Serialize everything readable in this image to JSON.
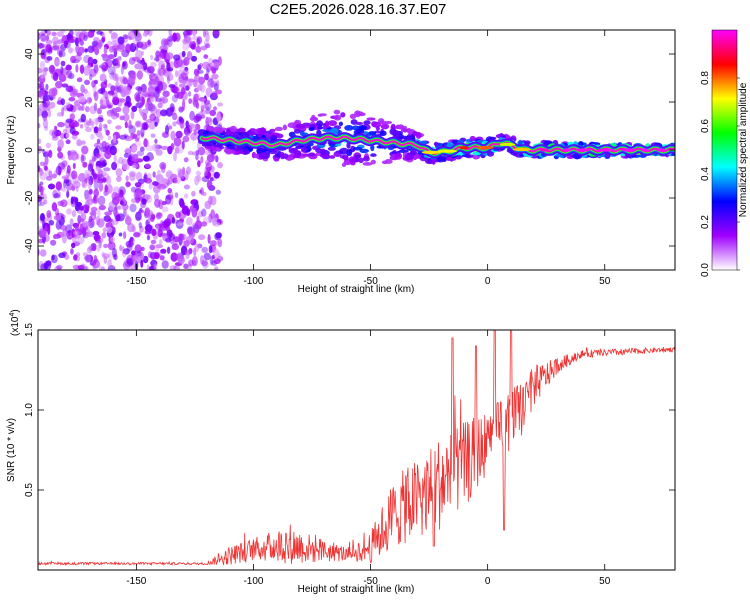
{
  "title": "C2E5.2026.028.16.37.E07",
  "chart_data": [
    {
      "type": "heatmap",
      "xlabel": "Height of straight line (km)",
      "ylabel": "Frequency (Hz)",
      "xlim": [
        -192,
        80
      ],
      "ylim": [
        -50,
        50
      ],
      "xticks": [
        -150,
        -100,
        -50,
        0,
        50
      ],
      "yticks": [
        -40,
        -20,
        0,
        20,
        40
      ],
      "colorbar": {
        "label": "Normalized spectral amplitude",
        "range": [
          0,
          1
        ],
        "ticks": [
          0.0,
          0.2,
          0.4,
          0.6,
          0.8
        ],
        "colors": [
          "#ffffff",
          "#a000ff",
          "#0000ff",
          "#00ffff",
          "#00ff00",
          "#ffff00",
          "#ff0000",
          "#ff00ff"
        ]
      },
      "noise_region": {
        "x": [
          -192,
          -118
        ],
        "amplitude": 0.2
      },
      "ridge": [
        {
          "x": -120,
          "f": 5,
          "amp": 0.45
        },
        {
          "x": -110,
          "f": 4,
          "amp": 0.42
        },
        {
          "x": -100,
          "f": 3,
          "amp": 0.45
        },
        {
          "x": -90,
          "f": 2,
          "amp": 0.4
        },
        {
          "x": -80,
          "f": 4,
          "amp": 0.4
        },
        {
          "x": -70,
          "f": 5,
          "amp": 0.42
        },
        {
          "x": -60,
          "f": 5,
          "amp": 0.42
        },
        {
          "x": -50,
          "f": 4,
          "amp": 0.42
        },
        {
          "x": -40,
          "f": 3,
          "amp": 0.4
        },
        {
          "x": -30,
          "f": 2,
          "amp": 0.45
        },
        {
          "x": -25,
          "f": -1,
          "amp": 0.7
        },
        {
          "x": -20,
          "f": -1,
          "amp": 0.6
        },
        {
          "x": -10,
          "f": 1,
          "amp": 0.8
        },
        {
          "x": 0,
          "f": 1,
          "amp": 0.75
        },
        {
          "x": 5,
          "f": 3,
          "amp": 0.6
        },
        {
          "x": 10,
          "f": 2,
          "amp": 0.65
        },
        {
          "x": 15,
          "f": 0,
          "amp": 0.7
        },
        {
          "x": 20,
          "f": 0,
          "amp": 0.9
        },
        {
          "x": 30,
          "f": 0,
          "amp": 0.95
        },
        {
          "x": 50,
          "f": 0,
          "amp": 0.97
        },
        {
          "x": 80,
          "f": 0,
          "amp": 0.98
        }
      ],
      "spread": [
        {
          "x": -120,
          "width": 4
        },
        {
          "x": -80,
          "width": 8
        },
        {
          "x": -60,
          "width": 12
        },
        {
          "x": -40,
          "width": 8
        },
        {
          "x": -25,
          "width": 4
        },
        {
          "x": 80,
          "width": 2
        }
      ]
    },
    {
      "type": "line",
      "xlabel": "Height of straight line (km)",
      "ylabel": "SNR (10 * v/v)",
      "scale_label": "(x10",
      "scale_exp": "4",
      "scale_close": ")",
      "xlim": [
        -192,
        80
      ],
      "ylim": [
        0,
        15000
      ],
      "xticks": [
        -150,
        -100,
        -50,
        0,
        50
      ],
      "yticks": [
        5000,
        10000,
        15000
      ],
      "ytick_labels": [
        "0.5",
        "1.0",
        "1.5"
      ],
      "color": "#ee3333",
      "envelope": [
        {
          "x": -192,
          "base": 400,
          "amp": 150
        },
        {
          "x": -120,
          "base": 400,
          "amp": 150
        },
        {
          "x": -110,
          "base": 900,
          "amp": 1200
        },
        {
          "x": -100,
          "base": 1300,
          "amp": 1400
        },
        {
          "x": -85,
          "base": 1600,
          "amp": 2500
        },
        {
          "x": -75,
          "base": 1300,
          "amp": 1800
        },
        {
          "x": -60,
          "base": 1000,
          "amp": 900
        },
        {
          "x": -50,
          "base": 1400,
          "amp": 2000
        },
        {
          "x": -40,
          "base": 3500,
          "amp": 4500
        },
        {
          "x": -30,
          "base": 4500,
          "amp": 5000
        },
        {
          "x": -20,
          "base": 5500,
          "amp": 6000
        },
        {
          "x": -10,
          "base": 6500,
          "amp": 5500
        },
        {
          "x": 0,
          "base": 8000,
          "amp": 4000
        },
        {
          "x": 10,
          "base": 9000,
          "amp": 4500
        },
        {
          "x": 20,
          "base": 11500,
          "amp": 2500
        },
        {
          "x": 30,
          "base": 12800,
          "amp": 1000
        },
        {
          "x": 40,
          "base": 13500,
          "amp": 500
        },
        {
          "x": 80,
          "base": 13800,
          "amp": 300
        }
      ],
      "spikes": [
        {
          "x": -23,
          "y": 1500
        },
        {
          "x": -15,
          "y": 14500
        },
        {
          "x": -5,
          "y": 14000
        },
        {
          "x": 3,
          "y": 15000
        },
        {
          "x": 7,
          "y": 2500
        },
        {
          "x": 10,
          "y": 15000
        }
      ]
    }
  ]
}
